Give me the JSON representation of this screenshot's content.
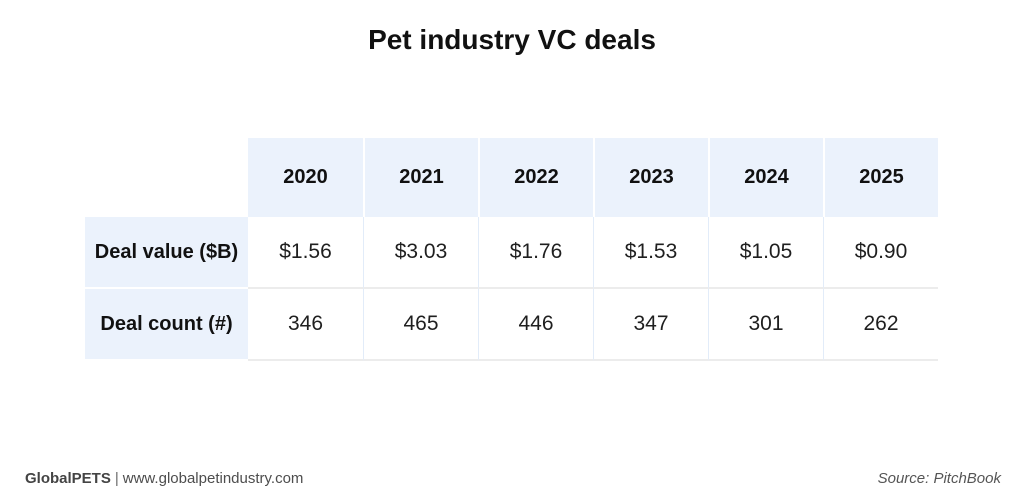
{
  "title": "Pet industry VC deals",
  "table": {
    "years": [
      "2020",
      "2021",
      "2022",
      "2023",
      "2024",
      "2025"
    ],
    "rows": [
      {
        "label": "Deal value ($B)",
        "values": [
          "$1.56",
          "$3.03",
          "$1.76",
          "$1.53",
          "$1.05",
          "$0.90"
        ]
      },
      {
        "label": "Deal count (#)",
        "values": [
          "346",
          "465",
          "446",
          "347",
          "301",
          "262"
        ]
      }
    ]
  },
  "footer": {
    "brand": "GlobalPETS",
    "separator": "|",
    "website": "www.globalpetindustry.com",
    "source": "Source: PitchBook"
  },
  "colors": {
    "header_background": "#EBF2FC",
    "cell_border_gray": "#ECECEC",
    "cell_border_blue": "#E2ECF9",
    "title_text": "#111111",
    "value_text": "#1F1F1F",
    "footer_text": "#4D4D4D"
  },
  "chart_data": {
    "type": "table",
    "title": "Pet industry VC deals",
    "categories": [
      "2020",
      "2021",
      "2022",
      "2023",
      "2024",
      "2025"
    ],
    "series": [
      {
        "name": "Deal value ($B)",
        "values": [
          1.56,
          3.03,
          1.76,
          1.53,
          1.05,
          0.9
        ]
      },
      {
        "name": "Deal count (#)",
        "values": [
          346,
          465,
          446,
          347,
          301,
          262
        ]
      }
    ],
    "source": "Source: PitchBook",
    "layout": "years as columns, metrics as rows, header row and label column shaded light blue"
  }
}
